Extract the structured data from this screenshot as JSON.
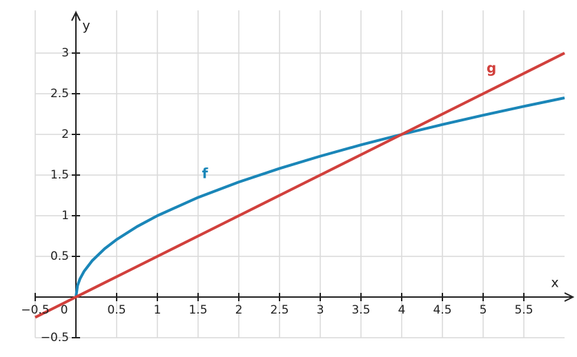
{
  "chart_data": {
    "type": "line",
    "x": [
      -0.5,
      0,
      0.02,
      0.05,
      0.1,
      0.2,
      0.35,
      0.5,
      0.75,
      1,
      1.5,
      2,
      2.5,
      3,
      3.5,
      4,
      4.5,
      5,
      5.5,
      6
    ],
    "series": [
      {
        "name": "f",
        "color": "#1a86b8",
        "values": [
          null,
          0,
          0.141,
          0.224,
          0.316,
          0.447,
          0.592,
          0.707,
          0.866,
          1,
          1.225,
          1.414,
          1.581,
          1.732,
          1.871,
          2,
          2.121,
          2.236,
          2.345,
          2.449
        ]
      },
      {
        "name": "g",
        "color": "#d1403c",
        "values": [
          -0.25,
          0,
          0.01,
          0.025,
          0.05,
          0.1,
          0.175,
          0.25,
          0.375,
          0.5,
          0.75,
          1,
          1.25,
          1.5,
          1.75,
          2,
          2.25,
          2.5,
          2.75,
          3
        ]
      }
    ],
    "x_label": "x",
    "y_label": "y",
    "xlim": [
      -0.5,
      6
    ],
    "ylim": [
      -0.5,
      3.5
    ],
    "xticks": [
      {
        "value": -0.5,
        "label": "−0.5"
      },
      0,
      0.5,
      1,
      1.5,
      2,
      2.5,
      3,
      3.5,
      4,
      4.5,
      5,
      5.5
    ],
    "yticks": [
      {
        "value": -0.5,
        "label": "−0.5"
      },
      0.5,
      1,
      1.5,
      2,
      2.5,
      3
    ],
    "grid": true
  }
}
